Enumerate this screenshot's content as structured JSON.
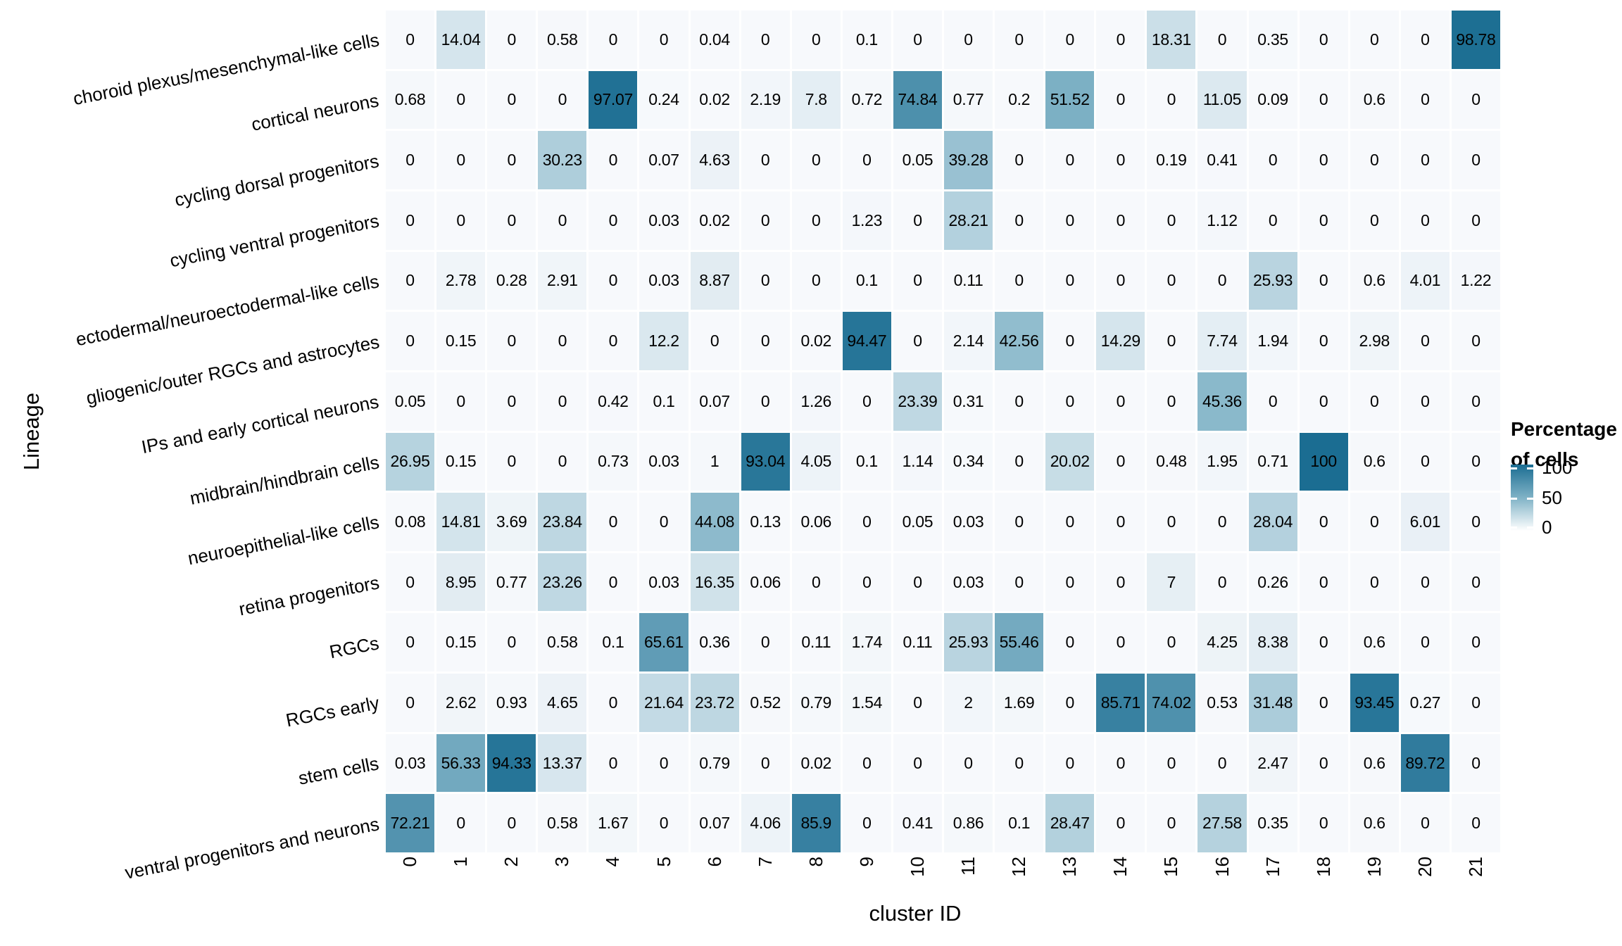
{
  "chart_data": {
    "type": "heatmap",
    "xlabel": "cluster ID",
    "ylabel": "Lineage",
    "grid": "off",
    "columns": [
      "0",
      "1",
      "2",
      "3",
      "4",
      "5",
      "6",
      "7",
      "8",
      "9",
      "10",
      "11",
      "12",
      "13",
      "14",
      "15",
      "16",
      "17",
      "18",
      "19",
      "20",
      "21"
    ],
    "rows": [
      "choroid plexus/mesenchymal-like cells",
      "cortical neurons",
      "cycling dorsal progenitors",
      "cycling ventral progenitors",
      "ectodermal/neuroectodermal-like cells",
      "gliogenic/outer RGCs and astrocytes",
      "IPs and early cortical neurons",
      "midbrain/hindbrain cells",
      "neuroepithelial-like cells",
      "retina progenitors",
      "RGCs",
      "RGCs early",
      "stem cells",
      "ventral progenitors and neurons"
    ],
    "values": [
      [
        0,
        14.04,
        0,
        0.58,
        0,
        0,
        0.04,
        0,
        0,
        0.1,
        0,
        0,
        0,
        0,
        0,
        18.31,
        0,
        0.35,
        0,
        0,
        0,
        98.78
      ],
      [
        0.68,
        0,
        0,
        0,
        97.07,
        0.24,
        0.02,
        2.19,
        7.8,
        0.72,
        74.84,
        0.77,
        0.2,
        51.52,
        0,
        0,
        11.05,
        0.09,
        0,
        0.6,
        0,
        0
      ],
      [
        0,
        0,
        0,
        30.23,
        0,
        0.07,
        4.63,
        0,
        0,
        0,
        0.05,
        39.28,
        0,
        0,
        0,
        0.19,
        0.41,
        0,
        0,
        0,
        0,
        0
      ],
      [
        0,
        0,
        0,
        0,
        0,
        0.03,
        0.02,
        0,
        0,
        1.23,
        0,
        28.21,
        0,
        0,
        0,
        0,
        1.12,
        0,
        0,
        0,
        0,
        0
      ],
      [
        0,
        2.78,
        0.28,
        2.91,
        0,
        0.03,
        8.87,
        0,
        0,
        0.1,
        0,
        0.11,
        0,
        0,
        0,
        0,
        0,
        25.93,
        0,
        0.6,
        4.01,
        1.22
      ],
      [
        0,
        0.15,
        0,
        0,
        0,
        12.2,
        0,
        0,
        0.02,
        94.47,
        0,
        2.14,
        42.56,
        0,
        14.29,
        0,
        7.74,
        1.94,
        0,
        2.98,
        0,
        0
      ],
      [
        0.05,
        0,
        0,
        0,
        0.42,
        0.1,
        0.07,
        0,
        1.26,
        0,
        23.39,
        0.31,
        0,
        0,
        0,
        0,
        45.36,
        0,
        0,
        0,
        0,
        0
      ],
      [
        26.95,
        0.15,
        0,
        0,
        0.73,
        0.03,
        1,
        93.04,
        4.05,
        0.1,
        1.14,
        0.34,
        0,
        20.02,
        0,
        0.48,
        1.95,
        0.71,
        100,
        0.6,
        0,
        0
      ],
      [
        0.08,
        14.81,
        3.69,
        23.84,
        0,
        0,
        44.08,
        0.13,
        0.06,
        0,
        0.05,
        0.03,
        0,
        0,
        0,
        0,
        0,
        28.04,
        0,
        0,
        6.01,
        0
      ],
      [
        0,
        8.95,
        0.77,
        23.26,
        0,
        0.03,
        16.35,
        0.06,
        0,
        0,
        0,
        0.03,
        0,
        0,
        0,
        7,
        0,
        0.26,
        0,
        0,
        0,
        0
      ],
      [
        0,
        0.15,
        0,
        0.58,
        0.1,
        65.61,
        0.36,
        0,
        0.11,
        1.74,
        0.11,
        25.93,
        55.46,
        0,
        0,
        0,
        4.25,
        8.38,
        0,
        0.6,
        0,
        0
      ],
      [
        0,
        2.62,
        0.93,
        4.65,
        0,
        21.64,
        23.72,
        0.52,
        0.79,
        1.54,
        0,
        2,
        1.69,
        0,
        85.71,
        74.02,
        0.53,
        31.48,
        0,
        93.45,
        0.27,
        0
      ],
      [
        0.03,
        56.33,
        94.33,
        13.37,
        0,
        0,
        0.79,
        0,
        0.02,
        0,
        0,
        0,
        0,
        0,
        0,
        0,
        0,
        2.47,
        0,
        0.6,
        89.72,
        0
      ],
      [
        72.21,
        0,
        0,
        0.58,
        1.67,
        0,
        0.07,
        4.06,
        85.9,
        0,
        0.41,
        0.86,
        0.1,
        28.47,
        0,
        0,
        27.58,
        0.35,
        0,
        0.6,
        0,
        0
      ]
    ],
    "legend": {
      "title_line1": "Percentage",
      "title_line2": "of cells",
      "position": "right",
      "range": [
        0,
        100
      ],
      "tick_labels": [
        "100",
        "50",
        "0"
      ]
    },
    "colors": {
      "low": "#f7f9fc",
      "mid": "#7fb2c6",
      "high": "#1b6d92"
    }
  }
}
